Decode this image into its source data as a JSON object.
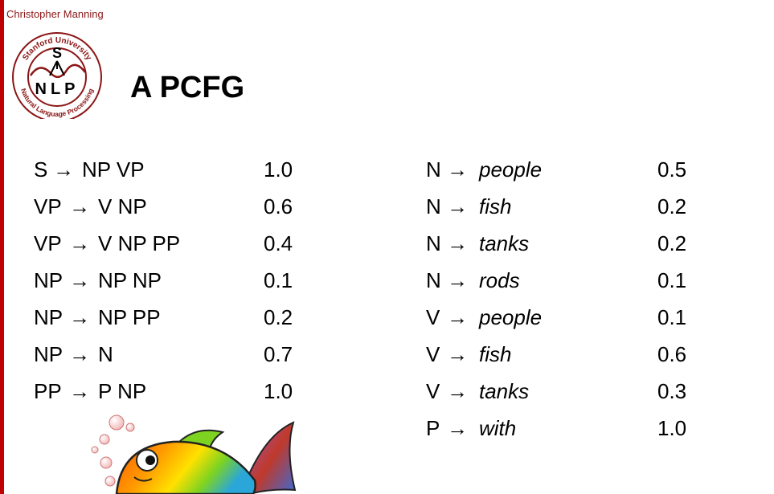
{
  "header": {
    "author": "Christopher Manning",
    "title": "A PCFG"
  },
  "logo": {
    "ring_top": "Stanford University",
    "ring_bottom": "Natural Language Processing",
    "top_letter": "S",
    "middle_letters": "NLP",
    "color": "#8c1515"
  },
  "grammar": {
    "arrow": "→",
    "left_rules": [
      {
        "lhs": "S",
        "rhs": "NP VP",
        "prob": "1.0"
      },
      {
        "lhs": "VP",
        "rhs": "V NP",
        "prob": "0.6"
      },
      {
        "lhs": "VP",
        "rhs": "V NP PP",
        "prob": "0.4"
      },
      {
        "lhs": "NP",
        "rhs": "NP NP",
        "prob": "0.1"
      },
      {
        "lhs": "NP",
        "rhs": "NP PP",
        "prob": "0.2"
      },
      {
        "lhs": "NP",
        "rhs": "N",
        "prob": "0.7"
      },
      {
        "lhs": "PP",
        "rhs": "P NP",
        "prob": "1.0"
      }
    ],
    "right_rules": [
      {
        "lhs": "N",
        "rhs": "people",
        "prob": "0.5"
      },
      {
        "lhs": "N",
        "rhs": "fish",
        "prob": "0.2"
      },
      {
        "lhs": "N",
        "rhs": "tanks",
        "prob": "0.2"
      },
      {
        "lhs": "N",
        "rhs": "rods",
        "prob": "0.1"
      },
      {
        "lhs": "V",
        "rhs": "people",
        "prob": "0.1"
      },
      {
        "lhs": "V",
        "rhs": "fish",
        "prob": "0.6"
      },
      {
        "lhs": "V",
        "rhs": "tanks",
        "prob": "0.3"
      },
      {
        "lhs": "P",
        "rhs": "with",
        "prob": "1.0"
      }
    ]
  },
  "decoration": {
    "illustration": "fish-illustration"
  }
}
